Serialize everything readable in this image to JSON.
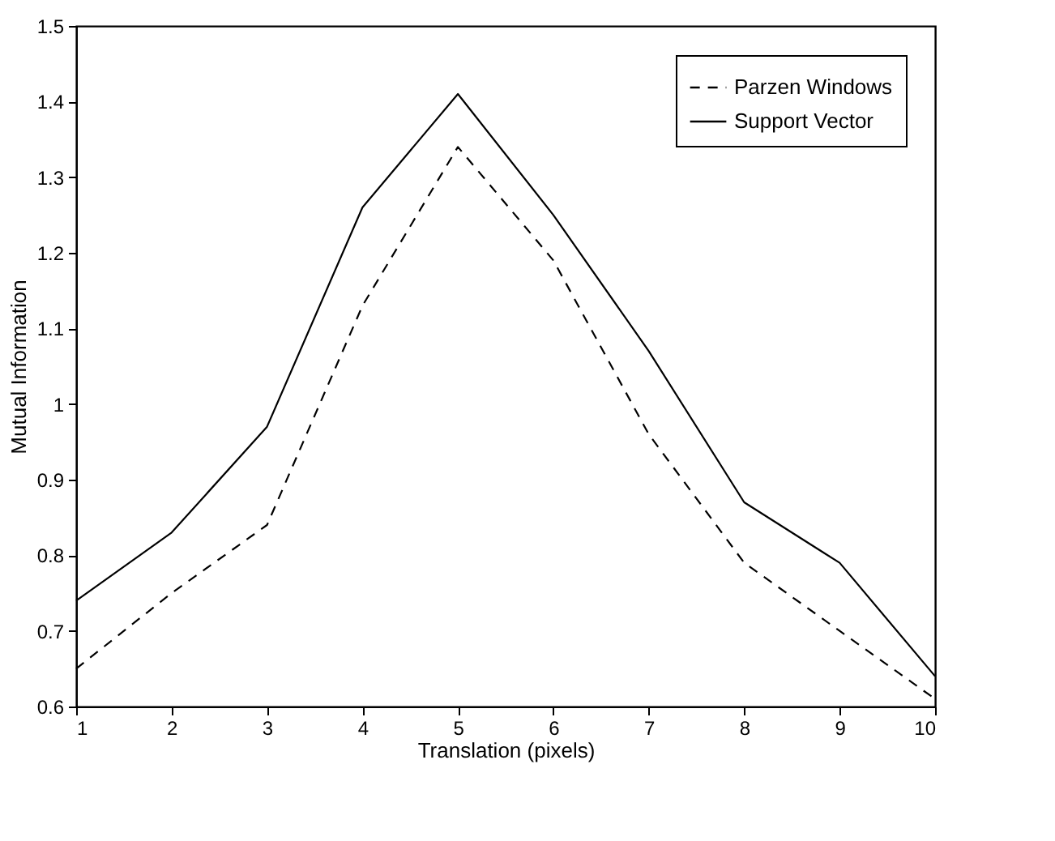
{
  "chart_data": {
    "type": "line",
    "xlabel": "Translation (pixels)",
    "ylabel": "Mutual Information",
    "x": [
      1,
      2,
      3,
      4,
      5,
      6,
      7,
      8,
      9,
      10
    ],
    "series": [
      {
        "name": "Parzen Windows",
        "color": "#000000",
        "line_style": "dashed",
        "values": [
          0.65,
          0.75,
          0.84,
          1.13,
          1.34,
          1.19,
          0.96,
          0.79,
          0.7,
          0.61
        ]
      },
      {
        "name": "Support Vector",
        "color": "#000000",
        "line_style": "solid",
        "values": [
          0.74,
          0.83,
          0.97,
          1.26,
          1.41,
          1.25,
          1.07,
          0.87,
          0.79,
          0.64
        ]
      }
    ],
    "xlim": [
      1,
      10
    ],
    "xticks": [
      1,
      2,
      3,
      4,
      5,
      6,
      7,
      8,
      9,
      10
    ],
    "ylim": [
      0.6,
      1.5
    ],
    "yticks": [
      0.6,
      0.7,
      0.8,
      0.9,
      1,
      1.1,
      1.2,
      1.3,
      1.4,
      1.5
    ],
    "legend": "top right",
    "grid": false,
    "marker": "none"
  }
}
